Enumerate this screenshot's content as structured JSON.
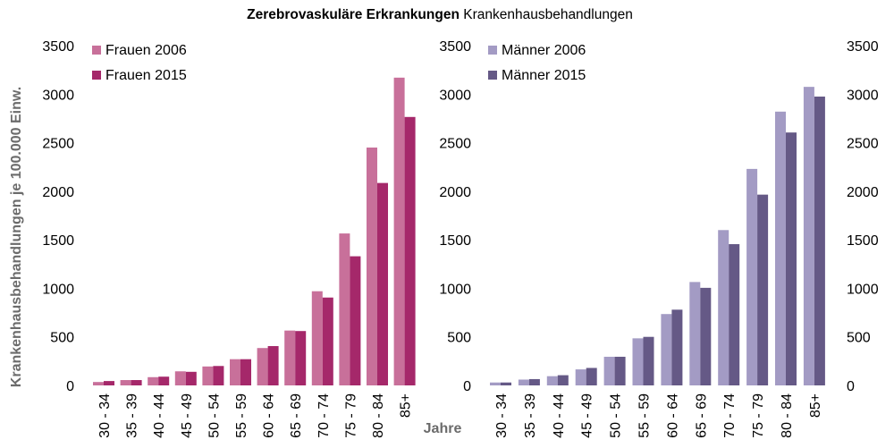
{
  "title": {
    "bold": "Zerebrovaskuläre Erkrankungen",
    "normal": "Krankenhausbehandlungen"
  },
  "ylabel": "Krankenhausbehandlungen je 100.000 Einw.",
  "xlabel": "Jahre",
  "colors": {
    "frauen_2006": "#c8709a",
    "frauen_2015": "#a5286a",
    "maenner_2006": "#a39bc4",
    "maenner_2015": "#655986",
    "tick_text": "#000000",
    "axis_title": "#6b6b6b"
  },
  "chart_data": [
    {
      "type": "bar",
      "categories": [
        "30 - 34",
        "35 - 39",
        "40 - 44",
        "45 - 49",
        "50 - 54",
        "55 - 59",
        "60 - 64",
        "65 - 69",
        "70 - 74",
        "75 - 79",
        "80 - 84",
        "85+"
      ],
      "series": [
        {
          "name": "Frauen 2006",
          "values": [
            35,
            55,
            85,
            145,
            195,
            270,
            385,
            565,
            970,
            1565,
            2450,
            3170
          ]
        },
        {
          "name": "Frauen 2015",
          "values": [
            45,
            55,
            90,
            140,
            200,
            270,
            405,
            560,
            905,
            1330,
            2085,
            2765
          ]
        }
      ],
      "ylim": [
        0,
        3500
      ],
      "yticks": [
        0,
        500,
        1000,
        1500,
        2000,
        2500,
        3000,
        3500
      ],
      "ylabel": "Krankenhausbehandlungen je 100.000 Einw.",
      "xlabel": "Jahre",
      "legend_position": "top-left",
      "grid": false
    },
    {
      "type": "bar",
      "categories": [
        "30 - 34",
        "35 - 39",
        "40 - 44",
        "45 - 49",
        "50 - 54",
        "55 - 59",
        "60 - 64",
        "65 - 69",
        "70 - 74",
        "75 - 79",
        "80 - 84",
        "85+"
      ],
      "series": [
        {
          "name": "Männer 2006",
          "values": [
            30,
            60,
            95,
            165,
            295,
            485,
            735,
            1065,
            1600,
            2230,
            2820,
            3075
          ]
        },
        {
          "name": "Männer 2015",
          "values": [
            30,
            65,
            105,
            180,
            295,
            500,
            780,
            1005,
            1455,
            1965,
            2605,
            2975
          ]
        }
      ],
      "ylim": [
        0,
        3500
      ],
      "yticks": [
        0,
        500,
        1000,
        1500,
        2000,
        2500,
        3000,
        3500
      ],
      "xlabel": "Jahre",
      "legend_position": "top-left",
      "grid": false
    }
  ]
}
